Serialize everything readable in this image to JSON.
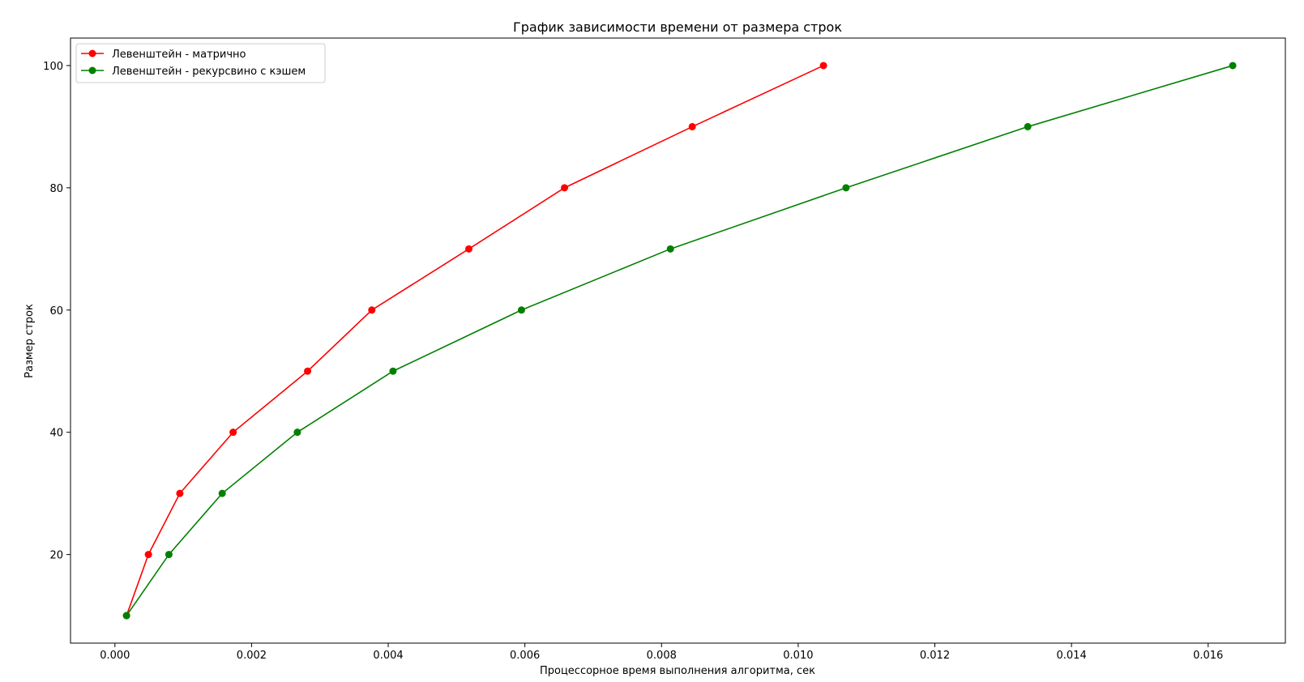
{
  "chart_data": {
    "type": "line",
    "title": "График зависимости времени от размера строк",
    "xlabel": "Процессорное время выполнения алгоритма, сек",
    "ylabel": "Размер строк",
    "xlim": [
      -0.00065,
      0.01713
    ],
    "ylim": [
      5.5,
      104.5
    ],
    "xticks": [
      0.0,
      0.002,
      0.004,
      0.006,
      0.008,
      0.01,
      0.012,
      0.014,
      0.016
    ],
    "xtick_labels": [
      "0.000",
      "0.002",
      "0.004",
      "0.006",
      "0.008",
      "0.010",
      "0.012",
      "0.014",
      "0.016"
    ],
    "yticks": [
      20,
      40,
      60,
      80,
      100
    ],
    "ytick_labels": [
      "20",
      "40",
      "60",
      "80",
      "100"
    ],
    "grid": false,
    "legend_position": "top-left",
    "series": [
      {
        "name": "Левенштейн - матрично",
        "color": "#ff0000",
        "marker": "circle",
        "x": [
          0.00017,
          0.00049,
          0.00095,
          0.00173,
          0.00282,
          0.00376,
          0.00518,
          0.00658,
          0.00845,
          0.01037
        ],
        "y": [
          10,
          20,
          30,
          40,
          50,
          60,
          70,
          80,
          90,
          100
        ]
      },
      {
        "name": "Левенштейн - рекурсвино с кэшем",
        "color": "#008000",
        "marker": "circle",
        "x": [
          0.00017,
          0.00079,
          0.00157,
          0.00267,
          0.00407,
          0.00595,
          0.00813,
          0.0107,
          0.01336,
          0.01636
        ],
        "y": [
          10,
          20,
          30,
          40,
          50,
          60,
          70,
          80,
          90,
          100
        ]
      }
    ]
  }
}
